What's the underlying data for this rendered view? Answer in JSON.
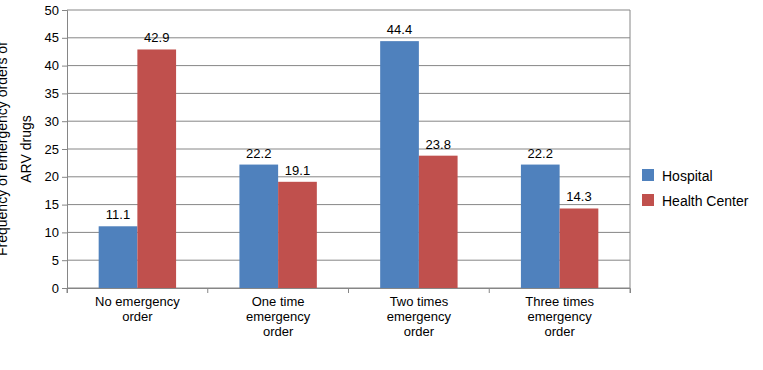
{
  "chart_data": {
    "type": "bar",
    "y_label": "Frequency of emergency orders of ARV drugs",
    "categories": [
      "No emergency order",
      "One time emergency order",
      "Two times emergency order",
      "Three times emergency order"
    ],
    "series": [
      {
        "name": "Hospital",
        "color": "#4f81bd",
        "values": [
          11.1,
          22.2,
          44.4,
          22.2
        ]
      },
      {
        "name": "Health Center",
        "color": "#c0504d",
        "values": [
          42.9,
          19.1,
          23.8,
          14.3
        ]
      }
    ],
    "ylim": [
      0,
      50
    ],
    "yticks": [
      0,
      5,
      10,
      15,
      20,
      25,
      30,
      35,
      40,
      45,
      50
    ],
    "grid": true,
    "legend": "right",
    "data_labels": true
  }
}
